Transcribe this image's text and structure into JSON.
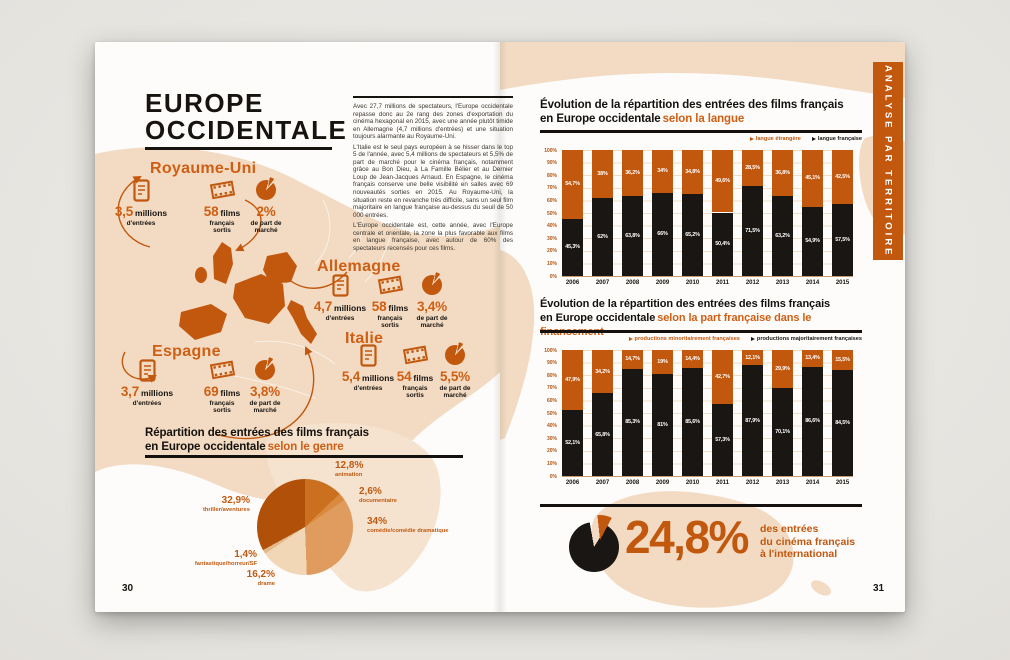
{
  "meta": {
    "page_left": "30",
    "page_right": "31",
    "side_tab": "ANALYSE PAR TERRITOIRE"
  },
  "palette": {
    "orange": "#c2570e",
    "black": "#1a1613",
    "beige": "#f2dbc2"
  },
  "left": {
    "title_l1": "EUROPE",
    "title_l2": "OCCIDENTALE",
    "intro": [
      "Avec 27,7 millions de spectateurs, l'Europe occidentale repasse donc au 2e rang des zones d'exportation du cinéma hexagonal en 2015, avec une année plutôt timide en Allemagne (4,7 millions d'entrées) et une situation toujours alarmante au Royaume-Uni.",
      "L'Italie est le seul pays européen à se hisser dans le top 5 de l'année, avec 5,4 millions de spectateurs et 5,5% de part de marché pour le cinéma français, notamment grâce au Bon Dieu, à La Famille Bélier et au Dernier Loup de Jean-Jacques Arnaud. En Espagne, le cinéma français conserve une belle visibilité en salles avec 69 nouveautés sorties en 2015. Au Royaume-Uni, la situation reste en revanche très difficile, sans un seul film majoritaire en langue française au-dessus du seuil de 50 000 entrées.",
      "L'Europe occidentale est, cette année, avec l'Europe centrale et orientale, la zone la plus favorable aux films en langue française, avec autour de 60% des spectateurs recensés pour ces films."
    ],
    "countries": [
      {
        "id": "royaume_uni",
        "name": "Royaume-Uni",
        "stats": [
          {
            "icon": "ticket",
            "value": "3,5",
            "unit": "millions",
            "sub": "d'entrées"
          },
          {
            "icon": "film",
            "value": "58",
            "unit": "films",
            "sub": "français sortis"
          },
          {
            "icon": "pie",
            "value": "2%",
            "unit": "",
            "sub": "de part de marché"
          }
        ]
      },
      {
        "id": "allemagne",
        "name": "Allemagne",
        "stats": [
          {
            "icon": "ticket",
            "value": "4,7",
            "unit": "millions",
            "sub": "d'entrées"
          },
          {
            "icon": "film",
            "value": "58",
            "unit": "films",
            "sub": "français sortis"
          },
          {
            "icon": "pie",
            "value": "3,4%",
            "unit": "",
            "sub": "de part de marché"
          }
        ]
      },
      {
        "id": "espagne",
        "name": "Espagne",
        "stats": [
          {
            "icon": "ticket",
            "value": "3,7",
            "unit": "millions",
            "sub": "d'entrées"
          },
          {
            "icon": "film",
            "value": "69",
            "unit": "films",
            "sub": "français sortis"
          },
          {
            "icon": "pie",
            "value": "3,8%",
            "unit": "",
            "sub": "de part de marché"
          }
        ]
      },
      {
        "id": "italie",
        "name": "Italie",
        "stats": [
          {
            "icon": "ticket",
            "value": "5,4",
            "unit": "millions",
            "sub": "d'entrées"
          },
          {
            "icon": "film",
            "value": "54",
            "unit": "films",
            "sub": "français sortis"
          },
          {
            "icon": "pie",
            "value": "5,5%",
            "unit": "",
            "sub": "de part de marché"
          }
        ]
      }
    ],
    "genre": {
      "title_l1": "Répartition des entrées des films français",
      "title_l2_black": "en Europe occidentale",
      "title_l2_accent": "selon le genre",
      "slices": [
        {
          "id": "animation",
          "label": "animation",
          "pct": "12,8%",
          "value": 12.8,
          "color": "#cb701f"
        },
        {
          "id": "documentaire",
          "label": "documentaire",
          "pct": "2,6%",
          "value": 2.6,
          "color": "#d98a3f"
        },
        {
          "id": "comedie",
          "label": "comédie/comédie dramatique",
          "pct": "34%",
          "value": 34,
          "color": "#df9c5e"
        },
        {
          "id": "drame",
          "label": "drame",
          "pct": "16,2%",
          "value": 16.2,
          "color": "#f1d7b6"
        },
        {
          "id": "fantastique",
          "label": "fantastique/horreur/SF",
          "pct": "1,4%",
          "value": 1.4,
          "color": "#e3b98c"
        },
        {
          "id": "thriller",
          "label": "thriller/aventures",
          "pct": "32,9%",
          "value": 32.9,
          "color": "#b05009"
        }
      ]
    }
  },
  "right": {
    "chart1": {
      "title_l1": "Évolution de la répartition des entrées des films français",
      "title_l2_black": "en Europe occidentale",
      "title_l2_accent": "selon la langue",
      "years": [
        "2006",
        "2007",
        "2008",
        "2009",
        "2010",
        "2011",
        "2012",
        "2013",
        "2014",
        "2015"
      ],
      "y_ticks": [
        "100%",
        "90%",
        "80%",
        "70%",
        "60%",
        "50%",
        "40%",
        "30%",
        "20%",
        "10%",
        "0%"
      ],
      "series_top": {
        "name": "langue étrangère",
        "color": "#c2570e",
        "labels": [
          "54,7%",
          "38%",
          "36,2%",
          "34%",
          "34,8%",
          "49,6%",
          "28,5%",
          "36,8%",
          "45,1%",
          "42,5%"
        ],
        "values": [
          54.7,
          38,
          36.2,
          34,
          34.8,
          49.6,
          28.5,
          36.8,
          45.1,
          42.5
        ]
      },
      "series_bottom": {
        "name": "langue française",
        "color": "#1a1613",
        "labels": [
          "45,3%",
          "62%",
          "63,8%",
          "66%",
          "65,2%",
          "50,4%",
          "71,5%",
          "63,2%",
          "54,9%",
          "57,5%"
        ],
        "values": [
          45.3,
          62,
          63.8,
          66,
          65.2,
          50.4,
          71.5,
          63.2,
          54.9,
          57.5
        ]
      }
    },
    "chart2": {
      "title_l1": "Évolution de la répartition des entrées des films français",
      "title_l2_black": "en Europe occidentale",
      "title_l2_accent": "selon la part française dans le financement",
      "years": [
        "2006",
        "2007",
        "2008",
        "2009",
        "2010",
        "2011",
        "2012",
        "2013",
        "2014",
        "2015"
      ],
      "y_ticks": [
        "100%",
        "90%",
        "80%",
        "70%",
        "60%",
        "50%",
        "40%",
        "30%",
        "20%",
        "10%",
        "0%"
      ],
      "series_top": {
        "name": "productions minoritairement françaises",
        "color": "#c2570e",
        "labels": [
          "47,9%",
          "34,2%",
          "14,7%",
          "19%",
          "14,4%",
          "42,7%",
          "12,1%",
          "29,9%",
          "13,4%",
          "15,5%"
        ],
        "values": [
          47.9,
          34.2,
          14.7,
          19,
          14.4,
          42.7,
          12.1,
          29.9,
          13.4,
          15.5
        ]
      },
      "series_bottom": {
        "name": "productions majoritairement françaises",
        "color": "#1a1613",
        "labels": [
          "52,1%",
          "65,8%",
          "85,3%",
          "81%",
          "85,6%",
          "57,3%",
          "87,9%",
          "70,1%",
          "86,6%",
          "84,5%"
        ],
        "values": [
          52.1,
          65.8,
          85.3,
          81,
          85.6,
          57.3,
          87.9,
          70.1,
          86.6,
          84.5
        ]
      }
    },
    "highlight": {
      "value": "24,8%",
      "desc": [
        "des entrées",
        "du cinéma français",
        "à l'international"
      ]
    }
  },
  "chart_data": [
    {
      "type": "bar",
      "stacked": true,
      "title": "Évolution de la répartition des entrées des films français en Europe occidentale selon la langue",
      "categories": [
        "2006",
        "2007",
        "2008",
        "2009",
        "2010",
        "2011",
        "2012",
        "2013",
        "2014",
        "2015"
      ],
      "series": [
        {
          "name": "langue étrangère",
          "values": [
            54.7,
            38,
            36.2,
            34,
            34.8,
            49.6,
            28.5,
            36.8,
            45.1,
            42.5
          ]
        },
        {
          "name": "langue française",
          "values": [
            45.3,
            62,
            63.8,
            66,
            65.2,
            50.4,
            71.5,
            63.2,
            54.9,
            57.5
          ]
        }
      ],
      "ylim": [
        0,
        100
      ],
      "unit": "%",
      "legend_position": "top-right",
      "grid": true
    },
    {
      "type": "bar",
      "stacked": true,
      "title": "Évolution de la répartition des entrées des films français en Europe occidentale selon la part française dans le financement",
      "categories": [
        "2006",
        "2007",
        "2008",
        "2009",
        "2010",
        "2011",
        "2012",
        "2013",
        "2014",
        "2015"
      ],
      "series": [
        {
          "name": "productions minoritairement françaises",
          "values": [
            47.9,
            34.2,
            14.7,
            19,
            14.4,
            42.7,
            12.1,
            29.9,
            13.4,
            15.5
          ]
        },
        {
          "name": "productions majoritairement françaises",
          "values": [
            52.1,
            65.8,
            85.3,
            81,
            85.6,
            57.3,
            87.9,
            70.1,
            86.6,
            84.5
          ]
        }
      ],
      "ylim": [
        0,
        100
      ],
      "unit": "%",
      "legend_position": "top-right",
      "grid": true
    },
    {
      "type": "pie",
      "title": "Répartition des entrées des films français en Europe occidentale selon le genre",
      "labels": [
        "animation",
        "documentaire",
        "comédie/comédie dramatique",
        "drame",
        "fantastique/horreur/SF",
        "thriller/aventures"
      ],
      "values": [
        12.8,
        2.6,
        34,
        16.2,
        1.4,
        32.9
      ],
      "unit": "%"
    },
    {
      "type": "kpi",
      "title": "des entrées du cinéma français à l'international",
      "value": 24.8,
      "unit": "%"
    }
  ]
}
